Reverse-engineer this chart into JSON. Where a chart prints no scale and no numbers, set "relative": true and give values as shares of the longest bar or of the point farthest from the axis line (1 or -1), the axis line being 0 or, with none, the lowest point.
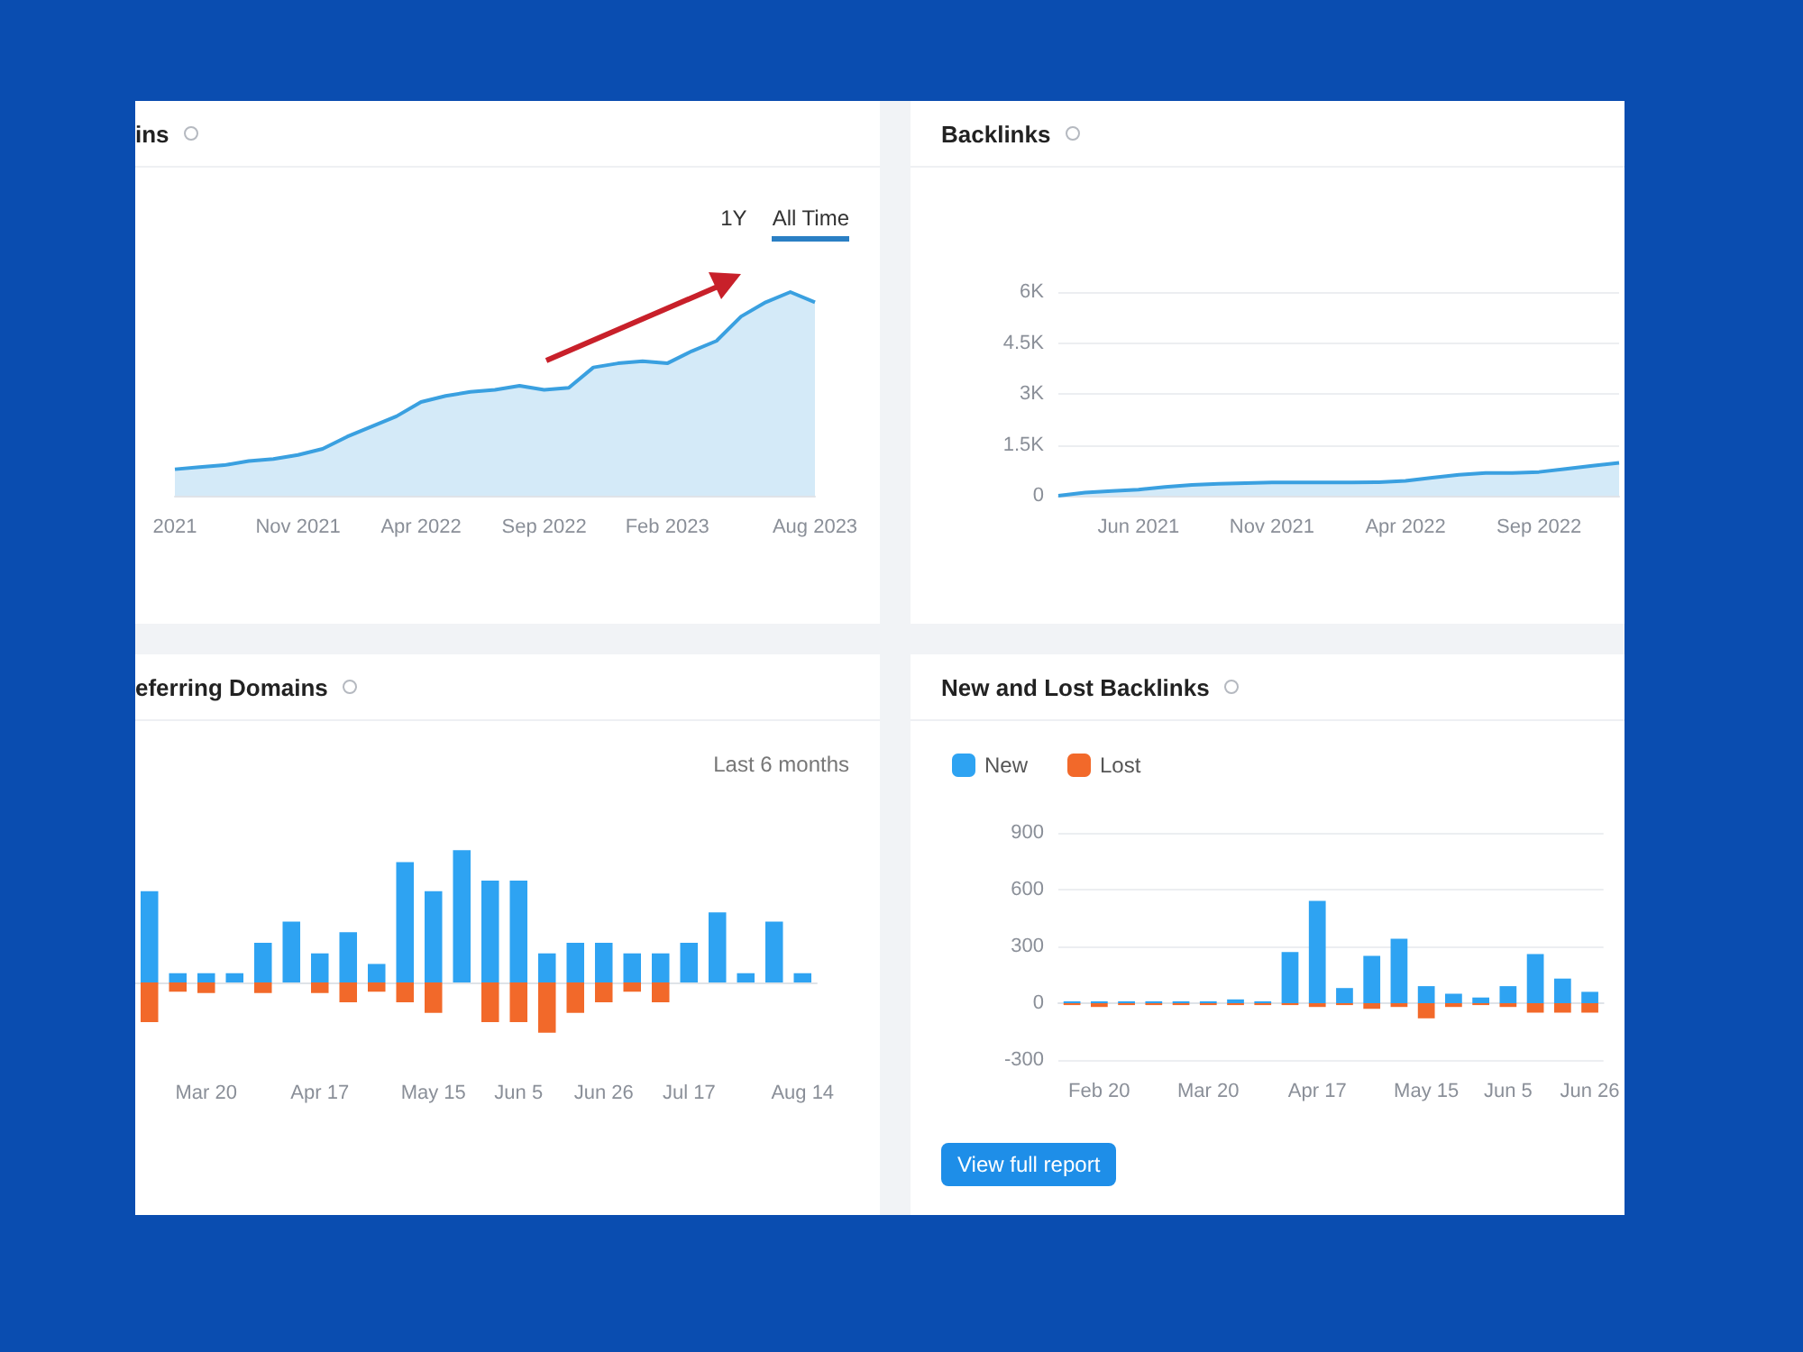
{
  "chart_data": [
    {
      "type": "area",
      "title": "ins",
      "relative": true,
      "annotations": [
        "1Y",
        "All Time"
      ],
      "categories": [
        "2021",
        null,
        null,
        null,
        null,
        "Nov 2021",
        null,
        null,
        null,
        null,
        "Apr 2022",
        null,
        null,
        null,
        null,
        "Sep 2022",
        null,
        null,
        null,
        null,
        "Feb 2023",
        null,
        null,
        null,
        null,
        null,
        "Aug 2023"
      ],
      "series": [
        {
          "color": "#3aa0e0",
          "values": [
            0.13,
            0.14,
            0.15,
            0.17,
            0.18,
            0.2,
            0.23,
            0.29,
            0.34,
            0.39,
            0.46,
            0.49,
            0.51,
            0.52,
            0.54,
            0.52,
            0.53,
            0.63,
            0.65,
            0.66,
            0.65,
            0.71,
            0.76,
            0.88,
            0.95,
            1.0,
            0.95
          ]
        }
      ]
    },
    {
      "type": "area",
      "title": "Backlinks",
      "ylim": [
        0,
        6000
      ],
      "yticks": [
        0,
        {
          "value": 1500,
          "label": "1.5K"
        },
        {
          "value": 3000,
          "label": "3K"
        },
        {
          "value": 4500,
          "label": "4.5K"
        },
        {
          "value": 6000,
          "label": "6K"
        }
      ],
      "grid": "y",
      "categories": [
        null,
        null,
        null,
        "Jun 2021",
        null,
        null,
        null,
        null,
        "Nov 2021",
        null,
        null,
        null,
        null,
        "Apr 2022",
        null,
        null,
        null,
        null,
        "Sep 2022",
        null,
        null,
        null
      ],
      "series": [
        {
          "color": "#3aa0e0",
          "values": [
            0,
            90,
            140,
            180,
            260,
            320,
            350,
            370,
            390,
            390,
            390,
            390,
            400,
            440,
            530,
            620,
            670,
            670,
            700,
            790,
            880,
            970
          ]
        }
      ]
    },
    {
      "type": "bar",
      "title": "eferring Domains",
      "relative": true,
      "stacked": true,
      "annotations": [
        "Last 6 months"
      ],
      "categories": [
        null,
        null,
        "Mar 20",
        null,
        null,
        null,
        "Apr 17",
        null,
        null,
        null,
        "May 15",
        null,
        null,
        "Jun 5",
        null,
        null,
        "Jun 26",
        null,
        null,
        "Jul 17",
        null,
        null,
        null,
        "Aug 14"
      ],
      "series": [
        {
          "color": "#2ea3f2",
          "values": [
            0.69,
            0.07,
            0.07,
            0.07,
            0.3,
            0.46,
            0.22,
            0.38,
            0.14,
            0.91,
            0.69,
            1.0,
            0.77,
            0.77,
            0.22,
            0.3,
            0.3,
            0.22,
            0.22,
            0.3,
            0.53,
            0.07,
            0.46,
            0.07
          ]
        },
        {
          "color": "#f2692a",
          "values": [
            -0.3,
            -0.07,
            -0.08,
            0,
            -0.08,
            0,
            -0.08,
            -0.15,
            -0.07,
            -0.15,
            -0.23,
            0,
            -0.3,
            -0.3,
            -0.38,
            -0.23,
            -0.15,
            -0.07,
            -0.15,
            0,
            0,
            0,
            0,
            0
          ]
        }
      ]
    },
    {
      "type": "bar",
      "title": "New and Lost Backlinks",
      "stacked": true,
      "legend": "top left",
      "grid": "y",
      "ylim": [
        -300,
        900
      ],
      "yticks": [
        -300,
        0,
        300,
        600,
        900
      ],
      "annotations": [
        "View full report"
      ],
      "categories": [
        null,
        "Feb 20",
        null,
        null,
        null,
        "Mar 20",
        null,
        null,
        null,
        "Apr 17",
        null,
        null,
        null,
        "May 15",
        null,
        null,
        "Jun 5",
        null,
        null,
        "Jun 26"
      ],
      "series": [
        {
          "name": "New",
          "color": "#2ea3f2",
          "values": [
            10,
            10,
            10,
            10,
            10,
            10,
            20,
            10,
            270,
            540,
            80,
            250,
            340,
            90,
            50,
            30,
            90,
            260,
            130,
            60
          ]
        },
        {
          "name": "Lost",
          "color": "#f2692a",
          "values": [
            -10,
            -20,
            -10,
            -10,
            -10,
            -10,
            -10,
            -10,
            -10,
            -20,
            -10,
            -30,
            -20,
            -80,
            -20,
            -10,
            -20,
            -50,
            -50,
            -50
          ]
        }
      ]
    }
  ]
}
